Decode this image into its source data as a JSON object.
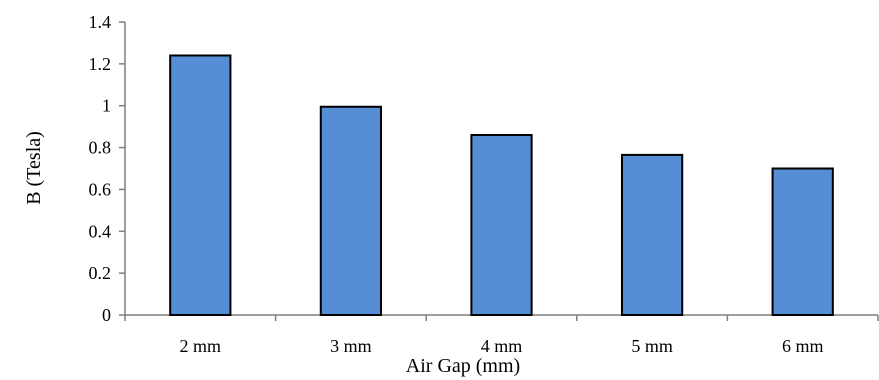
{
  "chart_data": {
    "type": "bar",
    "categories": [
      "2 mm",
      "3 mm",
      "4 mm",
      "5 mm",
      "6 mm"
    ],
    "values": [
      1.24,
      0.995,
      0.86,
      0.765,
      0.7
    ],
    "xlabel": "Air Gap (mm)",
    "ylabel": "B (Tesla)",
    "ylim": [
      0,
      1.4
    ],
    "yticks": [
      "0",
      "0.2",
      "0.4",
      "0.6",
      "0.8",
      "1",
      "1.2",
      "1.4"
    ],
    "grid": false,
    "legend": "none",
    "colors": {
      "bar_fill": "#558ED5",
      "bar_stroke": "#000000",
      "axis": "#7F7F7F"
    }
  }
}
